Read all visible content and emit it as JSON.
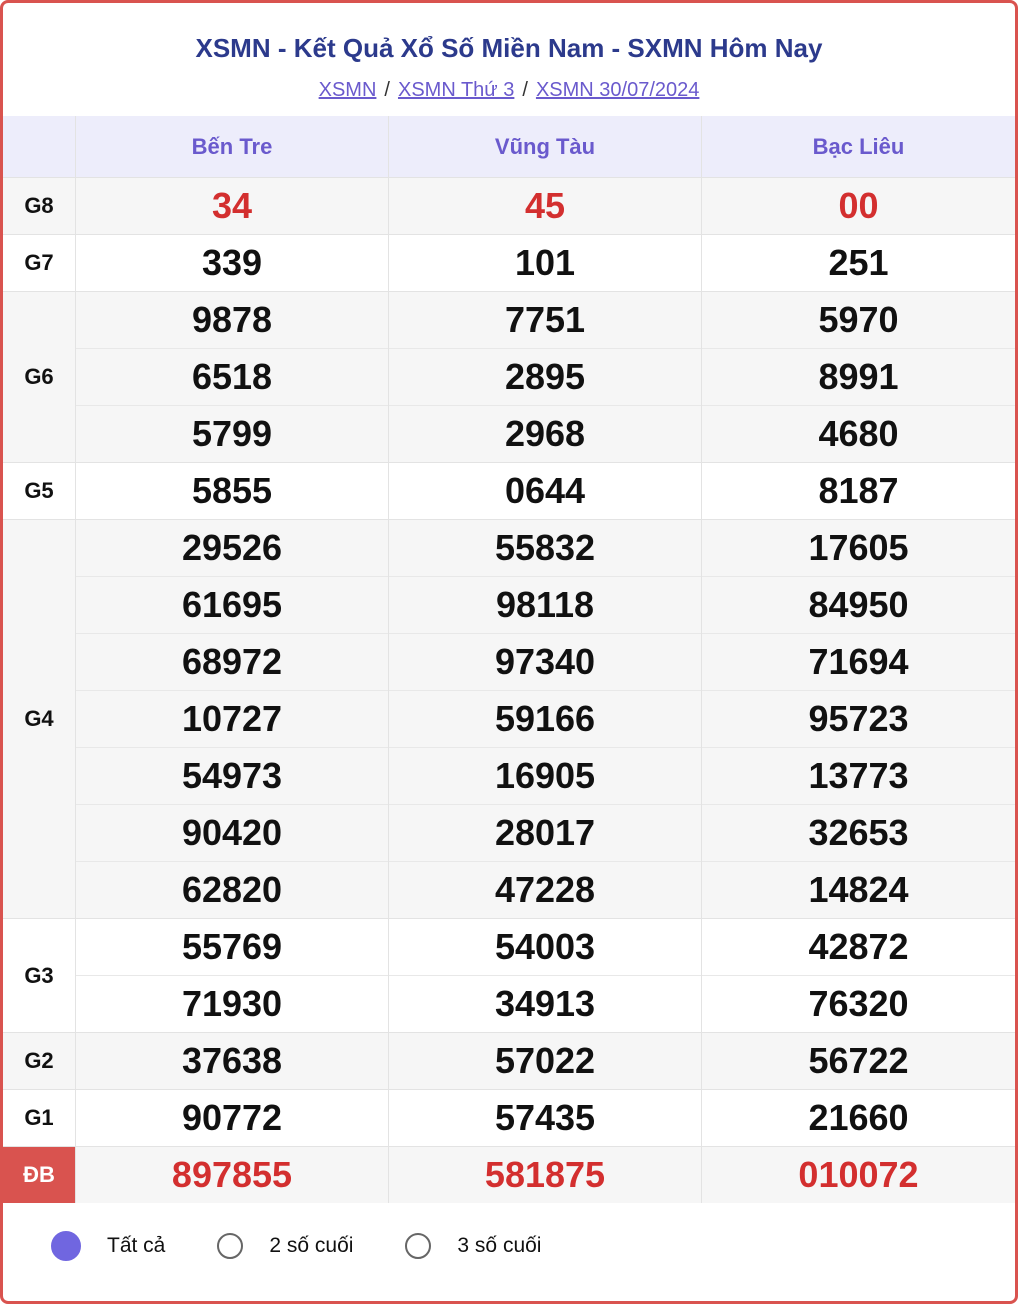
{
  "header": {
    "title": "XSMN - Kết Quả Xổ Số Miền Nam - SXMN Hôm Nay",
    "breadcrumbs": [
      "XSMN",
      "XSMN Thứ 3",
      "XSMN 30/07/2024"
    ],
    "separator": "/"
  },
  "table": {
    "columns": [
      "Bến Tre",
      "Vũng Tàu",
      "Bạc Liêu"
    ],
    "rows": [
      {
        "label": "G8",
        "cells": [
          [
            "34"
          ],
          [
            "45"
          ],
          [
            "00"
          ]
        ]
      },
      {
        "label": "G7",
        "cells": [
          [
            "339"
          ],
          [
            "101"
          ],
          [
            "251"
          ]
        ]
      },
      {
        "label": "G6",
        "cells": [
          [
            "9878",
            "6518",
            "5799"
          ],
          [
            "7751",
            "2895",
            "2968"
          ],
          [
            "5970",
            "8991",
            "4680"
          ]
        ]
      },
      {
        "label": "G5",
        "cells": [
          [
            "5855"
          ],
          [
            "0644"
          ],
          [
            "8187"
          ]
        ]
      },
      {
        "label": "G4",
        "cells": [
          [
            "29526",
            "61695",
            "68972",
            "10727",
            "54973",
            "90420",
            "62820"
          ],
          [
            "55832",
            "98118",
            "97340",
            "59166",
            "16905",
            "28017",
            "47228"
          ],
          [
            "17605",
            "84950",
            "71694",
            "95723",
            "13773",
            "32653",
            "14824"
          ]
        ]
      },
      {
        "label": "G3",
        "cells": [
          [
            "55769",
            "71930"
          ],
          [
            "54003",
            "34913"
          ],
          [
            "42872",
            "76320"
          ]
        ]
      },
      {
        "label": "G2",
        "cells": [
          [
            "37638"
          ],
          [
            "57022"
          ],
          [
            "56722"
          ]
        ]
      },
      {
        "label": "G1",
        "cells": [
          [
            "90772"
          ],
          [
            "57435"
          ],
          [
            "21660"
          ]
        ]
      },
      {
        "label": "ĐB",
        "cells": [
          [
            "897855"
          ],
          [
            "581875"
          ],
          [
            "010072"
          ]
        ]
      }
    ]
  },
  "filters": {
    "options": [
      "Tất cả",
      "2 số cuối",
      "3 số cuối"
    ],
    "selected": 0
  }
}
